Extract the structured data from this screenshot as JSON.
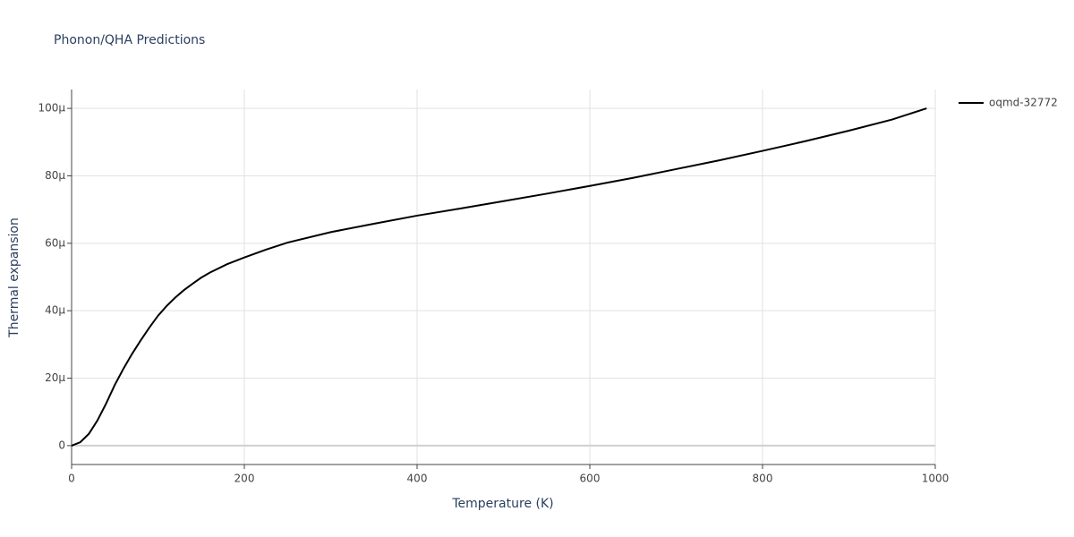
{
  "chart_data": {
    "type": "line",
    "title": "Phonon/QHA Predictions",
    "x_label": "Temperature (K)",
    "y_label": "Thermal expansion",
    "x": [
      0,
      10,
      20,
      30,
      40,
      50,
      60,
      70,
      80,
      90,
      100,
      110,
      120,
      130,
      140,
      150,
      160,
      180,
      200,
      225,
      250,
      300,
      350,
      400,
      450,
      500,
      550,
      600,
      650,
      700,
      750,
      800,
      850,
      900,
      950,
      990
    ],
    "series": [
      {
        "name": "oqmd-32772",
        "color": "#000000",
        "values": [
          0,
          1e-06,
          3.5e-06,
          7.5e-06,
          1.25e-05,
          1.8e-05,
          2.28e-05,
          2.72e-05,
          3.12e-05,
          3.5e-05,
          3.85e-05,
          4.14e-05,
          4.39e-05,
          4.61e-05,
          4.8e-05,
          4.98e-05,
          5.13e-05,
          5.38e-05,
          5.58e-05,
          5.81e-05,
          6.02e-05,
          6.33e-05,
          6.58e-05,
          6.82e-05,
          7.03e-05,
          7.25e-05,
          7.47e-05,
          7.7e-05,
          7.94e-05,
          8.2e-05,
          8.46e-05,
          8.74e-05,
          9.03e-05,
          9.34e-05,
          9.67e-05,
          0.0001
        ]
      }
    ],
    "xlim": [
      0,
      1000
    ],
    "xticks": [
      0,
      200,
      400,
      600,
      800,
      1000
    ],
    "ylim": [
      -5.6e-06,
      0.0001056
    ],
    "yticks": [
      0,
      {
        "value": 2e-05,
        "label": "20µ"
      },
      {
        "value": 4e-05,
        "label": "40µ"
      },
      {
        "value": 6e-05,
        "label": "60µ"
      },
      {
        "value": 8e-05,
        "label": "80µ"
      },
      {
        "value": 0.0001,
        "label": "100µ"
      }
    ],
    "grid": true,
    "legend": "top-right"
  }
}
